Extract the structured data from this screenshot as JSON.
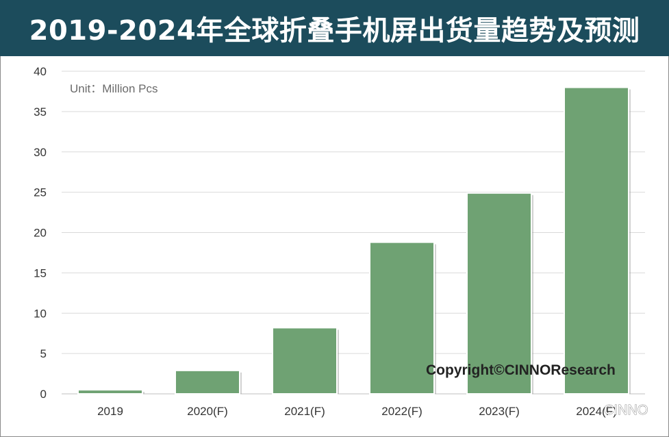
{
  "title": "2019-2024年全球折叠手机屏出货量趋势及预测",
  "unit_label": "Unit：Million Pcs",
  "copyright": "Copyright©CINNOResearch",
  "watermark": "CINNO",
  "colors": {
    "title_bg": "#1c4c5c",
    "bar": "#6fa273",
    "grid": "#d9d9d9"
  },
  "chart_data": {
    "type": "bar",
    "categories": [
      "2019",
      "2020(F)",
      "2021(F)",
      "2022(F)",
      "2023(F)",
      "2024(F)"
    ],
    "values": [
      0.5,
      2.9,
      8.2,
      18.8,
      24.9,
      38.0
    ],
    "ylim": [
      0,
      40
    ],
    "yticks": [
      0,
      5,
      10,
      15,
      20,
      25,
      30,
      35,
      40
    ],
    "grid": true,
    "legend": "none"
  }
}
